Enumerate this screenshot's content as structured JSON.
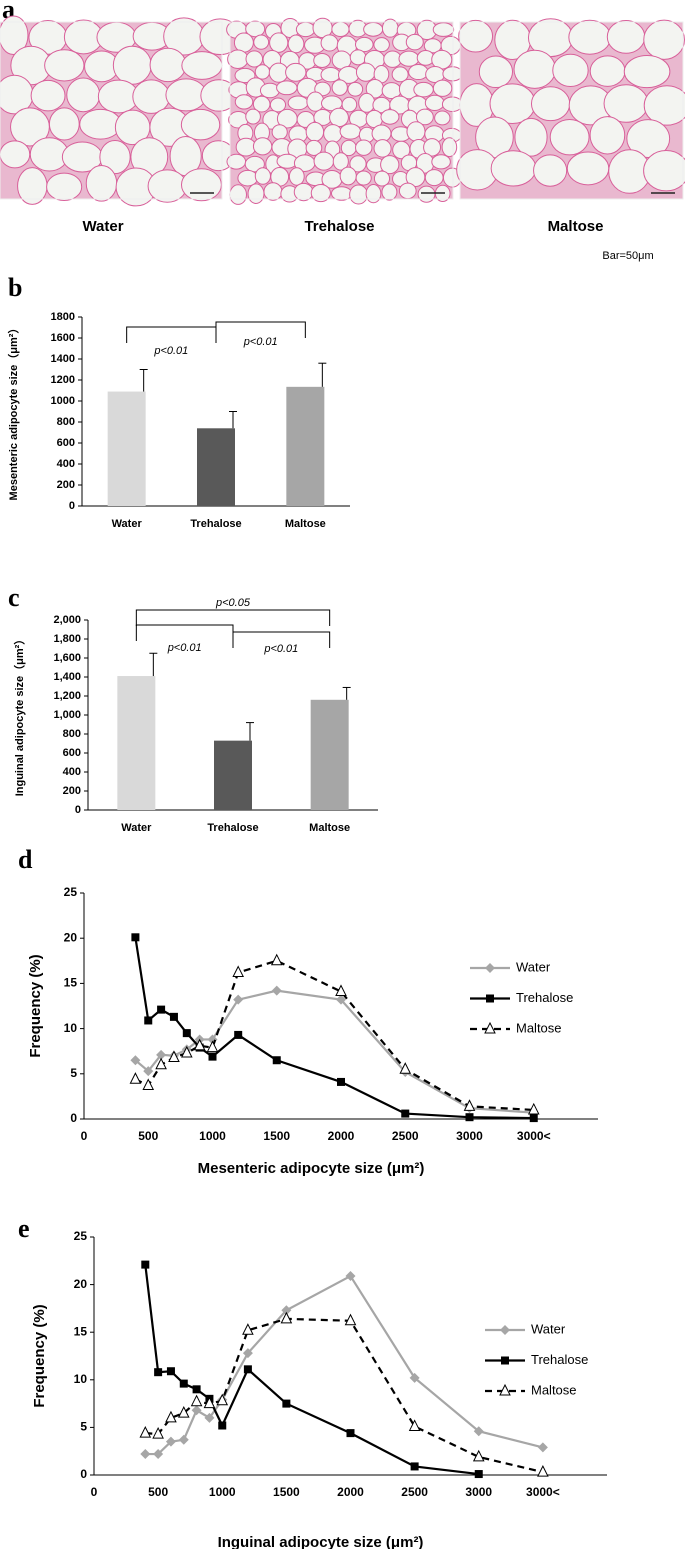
{
  "panel_a": {
    "panel": "a",
    "images": [
      {
        "label": "Water"
      },
      {
        "label": "Trehalose"
      },
      {
        "label": "Maltose"
      }
    ],
    "scale_note": "Bar=50μm"
  },
  "chart_data": [
    {
      "type": "bar",
      "panel": "b",
      "ylabel": "Mesenteric adipocyte size（μm²）",
      "categories": [
        "Water",
        "Trehalose",
        "Maltose"
      ],
      "values": [
        1090,
        740,
        1135
      ],
      "errors": [
        210,
        160,
        225
      ],
      "colors": [
        "#d9d9d9",
        "#595959",
        "#a6a6a6"
      ],
      "ylim": [
        0,
        1800
      ],
      "yticks": [
        0,
        200,
        400,
        600,
        800,
        1000,
        1200,
        1400,
        1600,
        1800
      ],
      "annotations": [
        {
          "pair": [
            0,
            1
          ],
          "text": "p<0.01"
        },
        {
          "pair": [
            1,
            2
          ],
          "text": "p<0.01"
        }
      ]
    },
    {
      "type": "bar",
      "panel": "c",
      "ylabel": "Inguinal adipocyte size（μm²）",
      "categories": [
        "Water",
        "Trehalose",
        "Maltose"
      ],
      "values": [
        1410,
        730,
        1160
      ],
      "errors": [
        240,
        190,
        130
      ],
      "colors": [
        "#d9d9d9",
        "#595959",
        "#a6a6a6"
      ],
      "ylim": [
        0,
        2000
      ],
      "yticks": [
        0,
        200,
        400,
        600,
        800,
        {
          "value": 1000,
          "label": "1,000"
        },
        {
          "value": 1200,
          "label": "1,200"
        },
        {
          "value": 1400,
          "label": "1,400"
        },
        {
          "value": 1600,
          "label": "1,600"
        },
        {
          "value": 1800,
          "label": "1,800"
        },
        {
          "value": 2000,
          "label": "2,000"
        }
      ],
      "annotations": [
        {
          "pair": [
            0,
            1
          ],
          "text": "p<0.01"
        },
        {
          "pair": [
            1,
            2
          ],
          "text": "p<0.01"
        },
        {
          "pair": [
            0,
            2
          ],
          "text": "p<0.05"
        }
      ]
    },
    {
      "type": "line",
      "panel": "d",
      "xlabel": "Mesenteric adipocyte size (μm²)",
      "ylabel": "Frequency (%)",
      "x": [
        400,
        500,
        600,
        700,
        800,
        900,
        1000,
        1200,
        1500,
        2000,
        2500,
        3000,
        3500
      ],
      "series": [
        {
          "name": "Water",
          "color": "#a6a6a6",
          "marker": "diamond",
          "values": [
            6.5,
            5.3,
            7.1,
            7.0,
            7.7,
            8.8,
            8.8,
            13.2,
            14.2,
            13.2,
            5.2,
            1.2,
            0.7
          ]
        },
        {
          "name": "Trehalose",
          "color": "#000000",
          "marker": "square",
          "values": [
            20.1,
            10.9,
            12.1,
            11.3,
            9.5,
            7.9,
            6.9,
            9.3,
            6.5,
            4.1,
            0.6,
            0.2,
            0.1
          ]
        },
        {
          "name": "Maltose",
          "color": "#000000",
          "marker": "triangle",
          "dashed": true,
          "values": [
            4.4,
            3.7,
            6.0,
            6.8,
            7.3,
            8.1,
            7.9,
            16.2,
            17.5,
            14.1,
            5.5,
            1.4,
            1.0
          ]
        }
      ],
      "xlim": [
        0,
        4000
      ],
      "xticks": [
        0,
        500,
        1000,
        1500,
        2000,
        2500,
        3000,
        {
          "value": 3500,
          "label": "3000<"
        }
      ],
      "ylim": [
        0,
        25
      ],
      "yticks": [
        0,
        5,
        10,
        15,
        20,
        25
      ],
      "legend": "right"
    },
    {
      "type": "line",
      "panel": "e",
      "xlabel": "Inguinal adipocyte size (μm²)",
      "ylabel": "Frequency (%)",
      "x": [
        400,
        500,
        600,
        700,
        800,
        900,
        1000,
        1200,
        1500,
        2000,
        2500,
        3000,
        3500
      ],
      "series": [
        {
          "name": "Water",
          "color": "#a6a6a6",
          "marker": "diamond",
          "values": [
            2.2,
            2.2,
            3.5,
            3.7,
            6.8,
            6.0,
            7.9,
            12.8,
            17.3,
            20.9,
            10.2,
            4.6,
            2.9
          ]
        },
        {
          "name": "Trehalose",
          "color": "#000000",
          "marker": "square",
          "values": [
            22.1,
            10.8,
            10.9,
            9.6,
            9.0,
            8.0,
            5.2,
            11.1,
            7.5,
            4.4,
            0.9,
            0.1,
            null
          ]
        },
        {
          "name": "Maltose",
          "color": "#000000",
          "marker": "triangle",
          "dashed": true,
          "values": [
            4.4,
            4.3,
            6.0,
            6.5,
            7.7,
            7.5,
            7.8,
            15.2,
            16.4,
            16.2,
            5.1,
            1.9,
            0.3
          ]
        }
      ],
      "xlim": [
        0,
        4000
      ],
      "xticks": [
        0,
        500,
        1000,
        1500,
        2000,
        2500,
        3000,
        {
          "value": 3500,
          "label": "3000<"
        }
      ],
      "ylim": [
        0,
        25
      ],
      "yticks": [
        0,
        5,
        10,
        15,
        20,
        25
      ],
      "legend": "right"
    }
  ]
}
